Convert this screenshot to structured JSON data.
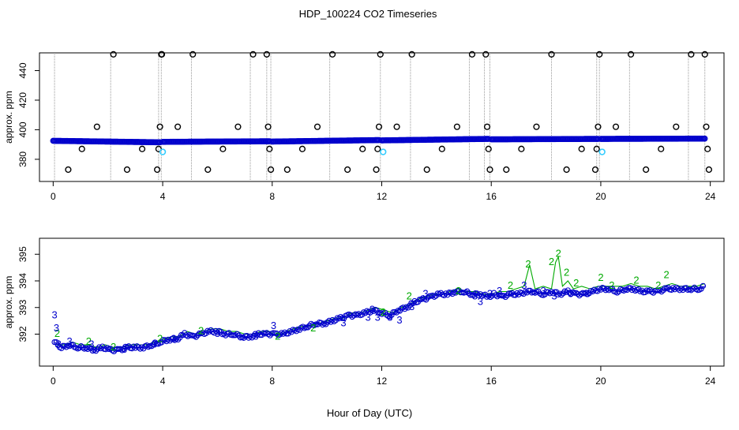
{
  "title": "HDP_100224  CO2 Timeseries",
  "xlabel": "Hour of Day (UTC)",
  "colors": {
    "circles": "#0000cc",
    "outliers": "#000000",
    "cyan": "#33ccff",
    "green": "#00aa00",
    "blue3": "#0000cc",
    "gridline": "#999999"
  },
  "chart_data": [
    {
      "type": "scatter",
      "panel": "top",
      "ylabel": "approx. ppm",
      "xlim": [
        -0.5,
        24.5
      ],
      "ylim": [
        365,
        452
      ],
      "xticks": [
        0,
        4,
        8,
        12,
        16,
        20,
        24
      ],
      "yticks": [
        380,
        400,
        420,
        440
      ],
      "vertical_lines_at": [
        0.05,
        2.1,
        3.85,
        3.95,
        5.05,
        7.2,
        7.8,
        7.95,
        10.1,
        11.95,
        13.05,
        15.2,
        15.75,
        15.95,
        18.2,
        19.85,
        19.95,
        21.05,
        23.2,
        23.8
      ],
      "baseline_segments": [
        {
          "x_start": 0.0,
          "x_end": 3.9,
          "y_start": 392.5,
          "y_end": 391.5
        },
        {
          "x_start": 4.0,
          "x_end": 7.9,
          "y_start": 391.8,
          "y_end": 392.2
        },
        {
          "x_start": 8.0,
          "x_end": 11.9,
          "y_start": 392.0,
          "y_end": 393.0
        },
        {
          "x_start": 12.0,
          "x_end": 15.9,
          "y_start": 392.8,
          "y_end": 393.8
        },
        {
          "x_start": 16.0,
          "x_end": 19.9,
          "y_start": 393.5,
          "y_end": 393.8
        },
        {
          "x_start": 20.0,
          "x_end": 23.8,
          "y_start": 393.8,
          "y_end": 394.0
        }
      ],
      "outlier_points": [
        {
          "x": 0.55,
          "y": 373
        },
        {
          "x": 1.05,
          "y": 387
        },
        {
          "x": 1.6,
          "y": 402
        },
        {
          "x": 2.2,
          "y": 451
        },
        {
          "x": 2.7,
          "y": 373
        },
        {
          "x": 3.25,
          "y": 387
        },
        {
          "x": 3.8,
          "y": 373
        },
        {
          "x": 3.85,
          "y": 387
        },
        {
          "x": 3.9,
          "y": 402
        },
        {
          "x": 3.95,
          "y": 451
        },
        {
          "x": 3.97,
          "y": 451
        },
        {
          "x": 4.55,
          "y": 402
        },
        {
          "x": 5.1,
          "y": 451
        },
        {
          "x": 5.65,
          "y": 373
        },
        {
          "x": 6.2,
          "y": 387
        },
        {
          "x": 6.75,
          "y": 402
        },
        {
          "x": 7.3,
          "y": 451
        },
        {
          "x": 7.8,
          "y": 451
        },
        {
          "x": 7.85,
          "y": 402
        },
        {
          "x": 7.9,
          "y": 387
        },
        {
          "x": 7.95,
          "y": 373
        },
        {
          "x": 8.55,
          "y": 373
        },
        {
          "x": 9.1,
          "y": 387
        },
        {
          "x": 9.65,
          "y": 402
        },
        {
          "x": 10.2,
          "y": 451
        },
        {
          "x": 10.75,
          "y": 373
        },
        {
          "x": 11.3,
          "y": 387
        },
        {
          "x": 11.8,
          "y": 373
        },
        {
          "x": 11.85,
          "y": 387
        },
        {
          "x": 11.9,
          "y": 402
        },
        {
          "x": 11.95,
          "y": 451
        },
        {
          "x": 12.55,
          "y": 402
        },
        {
          "x": 13.1,
          "y": 451
        },
        {
          "x": 13.65,
          "y": 373
        },
        {
          "x": 14.2,
          "y": 387
        },
        {
          "x": 14.75,
          "y": 402
        },
        {
          "x": 15.3,
          "y": 451
        },
        {
          "x": 15.8,
          "y": 451
        },
        {
          "x": 15.85,
          "y": 402
        },
        {
          "x": 15.9,
          "y": 387
        },
        {
          "x": 15.95,
          "y": 373
        },
        {
          "x": 16.55,
          "y": 373
        },
        {
          "x": 17.1,
          "y": 387
        },
        {
          "x": 17.65,
          "y": 402
        },
        {
          "x": 18.2,
          "y": 451
        },
        {
          "x": 18.75,
          "y": 373
        },
        {
          "x": 19.3,
          "y": 387
        },
        {
          "x": 19.8,
          "y": 373
        },
        {
          "x": 19.85,
          "y": 387
        },
        {
          "x": 19.9,
          "y": 402
        },
        {
          "x": 19.95,
          "y": 451
        },
        {
          "x": 20.55,
          "y": 402
        },
        {
          "x": 21.1,
          "y": 451
        },
        {
          "x": 21.65,
          "y": 373
        },
        {
          "x": 22.2,
          "y": 387
        },
        {
          "x": 22.75,
          "y": 402
        },
        {
          "x": 23.3,
          "y": 451
        },
        {
          "x": 23.8,
          "y": 451
        },
        {
          "x": 23.85,
          "y": 402
        },
        {
          "x": 23.9,
          "y": 387
        },
        {
          "x": 23.95,
          "y": 373
        }
      ],
      "cyan_points": [
        {
          "x": 4.0,
          "y": 385
        },
        {
          "x": 12.05,
          "y": 385
        },
        {
          "x": 20.05,
          "y": 385
        }
      ]
    },
    {
      "type": "line",
      "panel": "bottom",
      "ylabel": "approx. ppm",
      "xlim": [
        -0.5,
        24.5
      ],
      "ylim": [
        390.8,
        395.6
      ],
      "xticks": [
        0,
        4,
        8,
        12,
        16,
        20,
        24
      ],
      "yticks": [
        392,
        393,
        394,
        395
      ],
      "series": [
        {
          "name": "3",
          "marker": "circle",
          "x": [
            0.05,
            0.3,
            0.6,
            0.9,
            1.2,
            1.5,
            1.8,
            2.1,
            2.4,
            2.7,
            3.0,
            3.3,
            3.6,
            3.9,
            4.2,
            4.5,
            4.8,
            5.1,
            5.4,
            5.7,
            6.0,
            6.3,
            6.6,
            6.9,
            7.2,
            7.5,
            7.8,
            8.1,
            8.4,
            8.7,
            9.0,
            9.3,
            9.6,
            9.9,
            10.2,
            10.5,
            10.8,
            11.1,
            11.4,
            11.7,
            12.0,
            12.3,
            12.6,
            12.9,
            13.2,
            13.5,
            13.8,
            14.1,
            14.4,
            14.7,
            15.0,
            15.3,
            15.6,
            15.9,
            16.1,
            16.4,
            16.7,
            17.0,
            17.3,
            17.6,
            17.9,
            18.2,
            18.5,
            18.8,
            19.1,
            19.4,
            19.7,
            20.0,
            20.3,
            20.6,
            20.9,
            21.2,
            21.5,
            21.8,
            22.1,
            22.4,
            22.7,
            23.0,
            23.3,
            23.6,
            23.8
          ],
          "values": [
            391.7,
            391.5,
            391.6,
            391.5,
            391.5,
            391.4,
            391.5,
            391.4,
            391.4,
            391.5,
            391.5,
            391.5,
            391.6,
            391.7,
            391.8,
            391.8,
            392.0,
            391.9,
            392.0,
            392.1,
            392.1,
            392.0,
            392.0,
            391.9,
            391.9,
            392.0,
            392.0,
            392.0,
            392.0,
            392.1,
            392.2,
            392.3,
            392.4,
            392.4,
            392.5,
            392.6,
            392.7,
            392.7,
            392.8,
            392.9,
            392.8,
            392.7,
            392.9,
            393.0,
            393.2,
            393.3,
            393.4,
            393.5,
            393.5,
            393.6,
            393.6,
            393.5,
            393.5,
            393.4,
            393.5,
            393.4,
            393.5,
            393.5,
            393.6,
            393.6,
            393.5,
            393.6,
            393.5,
            393.6,
            393.5,
            393.5,
            393.6,
            393.7,
            393.7,
            393.6,
            393.7,
            393.7,
            393.6,
            393.6,
            393.6,
            393.7,
            393.7,
            393.7,
            393.7,
            393.7,
            393.8
          ]
        },
        {
          "name": "2",
          "marker": "digit",
          "x": [
            0.1,
            0.4,
            0.7,
            1.0,
            1.3,
            1.6,
            1.9,
            2.2,
            2.5,
            2.8,
            3.1,
            3.4,
            3.7,
            4.0,
            4.3,
            4.6,
            4.9,
            5.2,
            5.5,
            5.8,
            6.1,
            6.4,
            6.7,
            7.0,
            7.3,
            7.6,
            7.9,
            8.2,
            8.5,
            8.8,
            9.1,
            9.4,
            9.7,
            10.0,
            10.3,
            10.6,
            10.9,
            11.2,
            11.5,
            11.8,
            12.1,
            12.4,
            12.7,
            13.0,
            13.3,
            13.6,
            13.9,
            14.2,
            14.5,
            14.8,
            15.1,
            15.4,
            15.7,
            16.0,
            16.3,
            16.6,
            16.9,
            17.2,
            17.4,
            17.6,
            17.9,
            18.2,
            18.35,
            18.45,
            18.6,
            18.8,
            19.0,
            19.3,
            19.6,
            19.9,
            20.2,
            20.5,
            20.8,
            21.1,
            21.4,
            21.7,
            22.0,
            22.3,
            22.6,
            22.9,
            23.2,
            23.5,
            23.8
          ],
          "values": [
            391.6,
            391.6,
            391.7,
            391.6,
            391.6,
            391.5,
            391.6,
            391.5,
            391.5,
            391.6,
            391.6,
            391.6,
            391.7,
            391.8,
            391.9,
            391.9,
            392.1,
            392.0,
            392.1,
            392.2,
            392.2,
            392.1,
            392.1,
            392.0,
            392.0,
            392.1,
            392.1,
            391.9,
            392.1,
            392.2,
            392.3,
            392.3,
            392.4,
            392.5,
            392.6,
            392.6,
            392.8,
            392.8,
            392.9,
            393.0,
            392.9,
            392.8,
            393.0,
            393.1,
            393.3,
            393.4,
            393.5,
            393.5,
            393.6,
            393.7,
            393.6,
            393.6,
            393.5,
            393.5,
            393.6,
            393.6,
            393.7,
            393.8,
            394.6,
            393.7,
            393.8,
            393.7,
            394.7,
            394.9,
            393.8,
            394.0,
            393.7,
            393.8,
            393.7,
            393.8,
            393.8,
            393.8,
            393.8,
            393.9,
            393.8,
            393.8,
            393.7,
            393.8,
            393.9,
            393.8,
            393.8,
            393.8,
            393.9
          ]
        }
      ],
      "labels_3": [
        {
          "x": 0.05,
          "y": 392.7
        },
        {
          "x": 0.12,
          "y": 392.2
        },
        {
          "x": 0.2,
          "y": 391.6
        },
        {
          "x": 0.6,
          "y": 391.7
        },
        {
          "x": 1.4,
          "y": 391.6
        },
        {
          "x": 2.6,
          "y": 391.4
        },
        {
          "x": 3.7,
          "y": 391.6
        },
        {
          "x": 4.4,
          "y": 391.8
        },
        {
          "x": 6.0,
          "y": 392.0
        },
        {
          "x": 7.4,
          "y": 391.9
        },
        {
          "x": 8.05,
          "y": 392.3
        },
        {
          "x": 10.6,
          "y": 392.4
        },
        {
          "x": 11.5,
          "y": 392.6
        },
        {
          "x": 11.85,
          "y": 392.6
        },
        {
          "x": 11.65,
          "y": 392.9
        },
        {
          "x": 12.3,
          "y": 392.6
        },
        {
          "x": 12.65,
          "y": 392.5
        },
        {
          "x": 13.1,
          "y": 393.0
        },
        {
          "x": 13.6,
          "y": 393.5
        },
        {
          "x": 15.4,
          "y": 393.4
        },
        {
          "x": 15.6,
          "y": 393.2
        },
        {
          "x": 15.95,
          "y": 393.5
        },
        {
          "x": 16.3,
          "y": 393.6
        },
        {
          "x": 17.2,
          "y": 393.8
        },
        {
          "x": 17.9,
          "y": 393.6
        },
        {
          "x": 18.3,
          "y": 393.4
        },
        {
          "x": 18.9,
          "y": 393.5
        },
        {
          "x": 19.5,
          "y": 393.5
        }
      ],
      "labels_2": [
        {
          "x": 0.15,
          "y": 392.0
        },
        {
          "x": 1.3,
          "y": 391.7
        },
        {
          "x": 2.2,
          "y": 391.5
        },
        {
          "x": 3.9,
          "y": 391.8
        },
        {
          "x": 5.4,
          "y": 392.1
        },
        {
          "x": 8.2,
          "y": 391.9
        },
        {
          "x": 9.5,
          "y": 392.2
        },
        {
          "x": 12.05,
          "y": 392.8
        },
        {
          "x": 13.0,
          "y": 393.4
        },
        {
          "x": 14.8,
          "y": 393.6
        },
        {
          "x": 16.7,
          "y": 393.8
        },
        {
          "x": 17.35,
          "y": 394.6
        },
        {
          "x": 18.2,
          "y": 394.7
        },
        {
          "x": 18.45,
          "y": 395.0
        },
        {
          "x": 18.75,
          "y": 394.3
        },
        {
          "x": 19.1,
          "y": 393.9
        },
        {
          "x": 20.0,
          "y": 394.1
        },
        {
          "x": 20.4,
          "y": 393.8
        },
        {
          "x": 21.3,
          "y": 394.0
        },
        {
          "x": 22.4,
          "y": 394.2
        },
        {
          "x": 22.1,
          "y": 393.8
        }
      ]
    }
  ]
}
